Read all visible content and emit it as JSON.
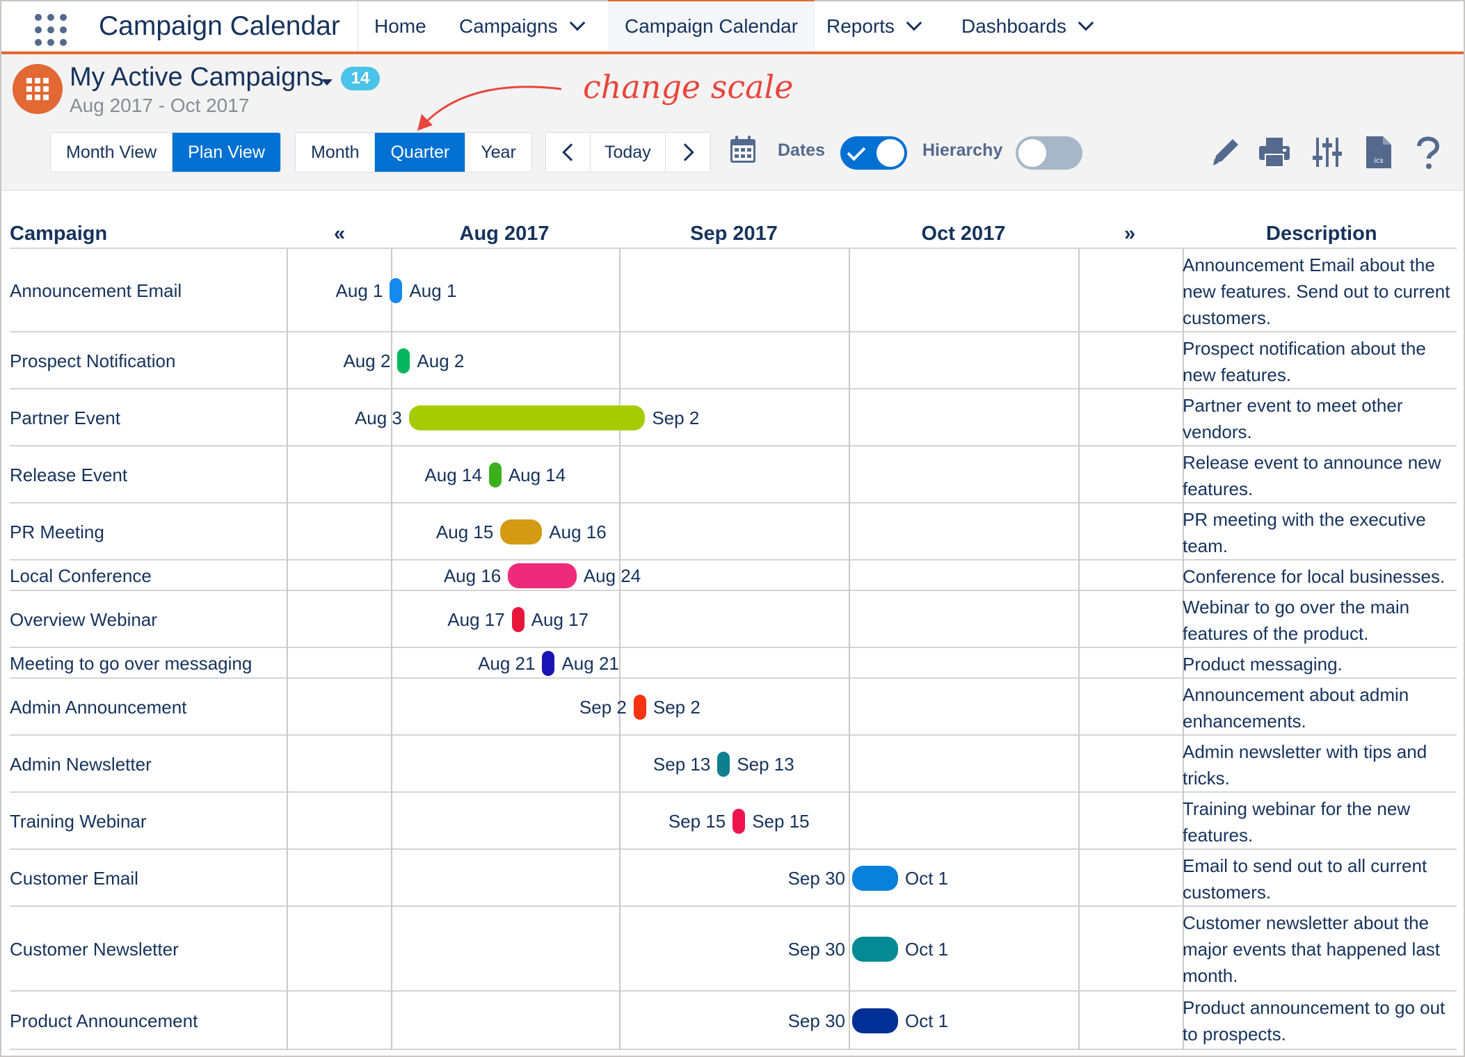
{
  "app": {
    "name": "Campaign Calendar"
  },
  "nav": {
    "tabs": [
      {
        "label": "Home",
        "dropdown": false
      },
      {
        "label": "Campaigns",
        "dropdown": true
      },
      {
        "label": "Campaign Calendar",
        "dropdown": false,
        "active": true
      },
      {
        "label": "Reports",
        "dropdown": true
      },
      {
        "label": "Dashboards",
        "dropdown": true
      }
    ]
  },
  "header": {
    "title": "My Active Campaigns",
    "count": "14",
    "range": "Aug 2017 - Oct 2017",
    "annotation": "change scale"
  },
  "toolbar": {
    "view_modes": [
      {
        "label": "Month View",
        "selected": false
      },
      {
        "label": "Plan View",
        "selected": true
      }
    ],
    "scales": [
      {
        "label": "Month",
        "selected": false
      },
      {
        "label": "Quarter",
        "selected": true
      },
      {
        "label": "Year",
        "selected": false
      }
    ],
    "today_label": "Today",
    "dates_label": "Dates",
    "dates_on": true,
    "hierarchy_label": "Hierarchy",
    "hierarchy_on": false,
    "icons": [
      "calendar-icon",
      "edit-icon",
      "print-icon",
      "settings-sliders-icon",
      "ics-file-icon",
      "help-icon"
    ]
  },
  "grid": {
    "campaign_header": "Campaign",
    "description_header": "Description",
    "prev_label": "«",
    "next_label": "»",
    "months": [
      "Aug 2017",
      "Sep 2017",
      "Oct 2017"
    ],
    "rows": [
      {
        "name": "Announcement Email",
        "start": "Aug 1",
        "end": "Aug 1",
        "color": "#1589ee",
        "description": "Announcement Email about the new features. Send out to current customers."
      },
      {
        "name": "Prospect Notification",
        "start": "Aug 2",
        "end": "Aug 2",
        "color": "#04b55d",
        "description": "Prospect notification about the new features."
      },
      {
        "name": "Partner Event",
        "start": "Aug 3",
        "end": "Sep 2",
        "color": "#a6cc00",
        "description": "Partner event to meet other vendors."
      },
      {
        "name": "Release Event",
        "start": "Aug 14",
        "end": "Aug 14",
        "color": "#3cb01c",
        "description": "Release event to announce new features."
      },
      {
        "name": "PR Meeting",
        "start": "Aug 15",
        "end": "Aug 16",
        "color": "#d49a12",
        "description": "PR meeting with the executive team."
      },
      {
        "name": "Local Conference",
        "start": "Aug 16",
        "end": "Aug 24",
        "color": "#ee2b7a",
        "description": "Conference for local businesses."
      },
      {
        "name": "Overview Webinar",
        "start": "Aug 17",
        "end": "Aug 17",
        "color": "#e8163a",
        "description": "Webinar to go over the main features of the product."
      },
      {
        "name": "Meeting to go over messaging",
        "start": "Aug 21",
        "end": "Aug 21",
        "color": "#1c13b5",
        "description": "Product messaging."
      },
      {
        "name": "Admin Announcement",
        "start": "Sep 2",
        "end": "Sep 2",
        "color": "#f8330f",
        "description": "Announcement about admin enhancements."
      },
      {
        "name": "Admin Newsletter",
        "start": "Sep 13",
        "end": "Sep 13",
        "color": "#0e7f8e",
        "description": "Admin newsletter with tips and tricks."
      },
      {
        "name": "Training Webinar",
        "start": "Sep 15",
        "end": "Sep 15",
        "color": "#f0144e",
        "description": "Training webinar for the new features."
      },
      {
        "name": "Customer Email",
        "start": "Sep 30",
        "end": "Oct 1",
        "color": "#0881dd",
        "description": "Email to send out to all current customers."
      },
      {
        "name": "Customer Newsletter",
        "start": "Sep 30",
        "end": "Oct 1",
        "color": "#048a94",
        "description": "Customer newsletter about the major events that happened last month."
      },
      {
        "name": "Product Announcement",
        "start": "Sep 30",
        "end": "Oct 1",
        "color": "#022f96",
        "description": "Product announcement to go out to prospects."
      }
    ]
  }
}
